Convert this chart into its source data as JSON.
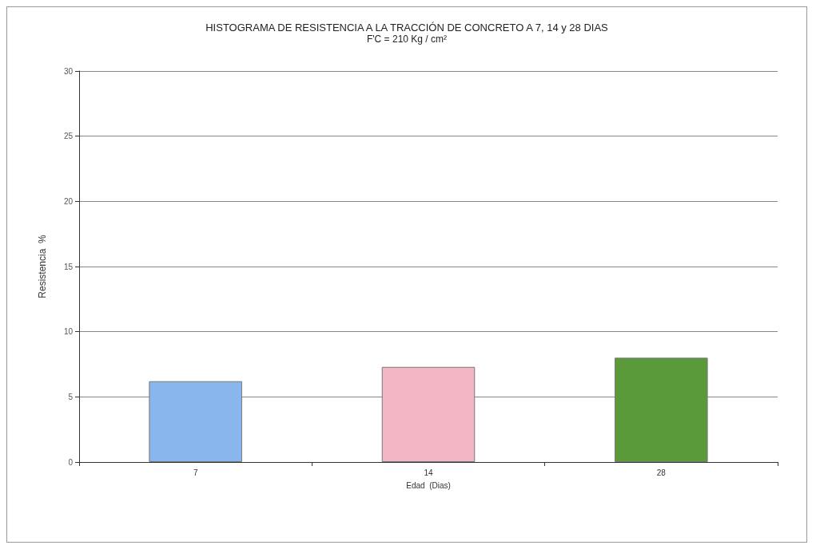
{
  "chart_data": {
    "type": "bar",
    "title": "HISTOGRAMA DE RESISTENCIA A LA TRACCIÓN DE CONCRETO A 7, 14 y 28 DIAS",
    "subtitle": "F'C = 210 Kg / cm²",
    "xlabel": "Edad  (Dias)",
    "ylabel": "Resistencia  %",
    "categories": [
      "7",
      "14",
      "28"
    ],
    "values": [
      6.2,
      7.3,
      8.0
    ],
    "colors": [
      "#8ab6ee",
      "#f2b6c4",
      "#5a9a3a"
    ],
    "ylim": [
      0,
      30
    ],
    "yticks": [
      0,
      5,
      10,
      15,
      20,
      25,
      30
    ],
    "grid": "y"
  }
}
